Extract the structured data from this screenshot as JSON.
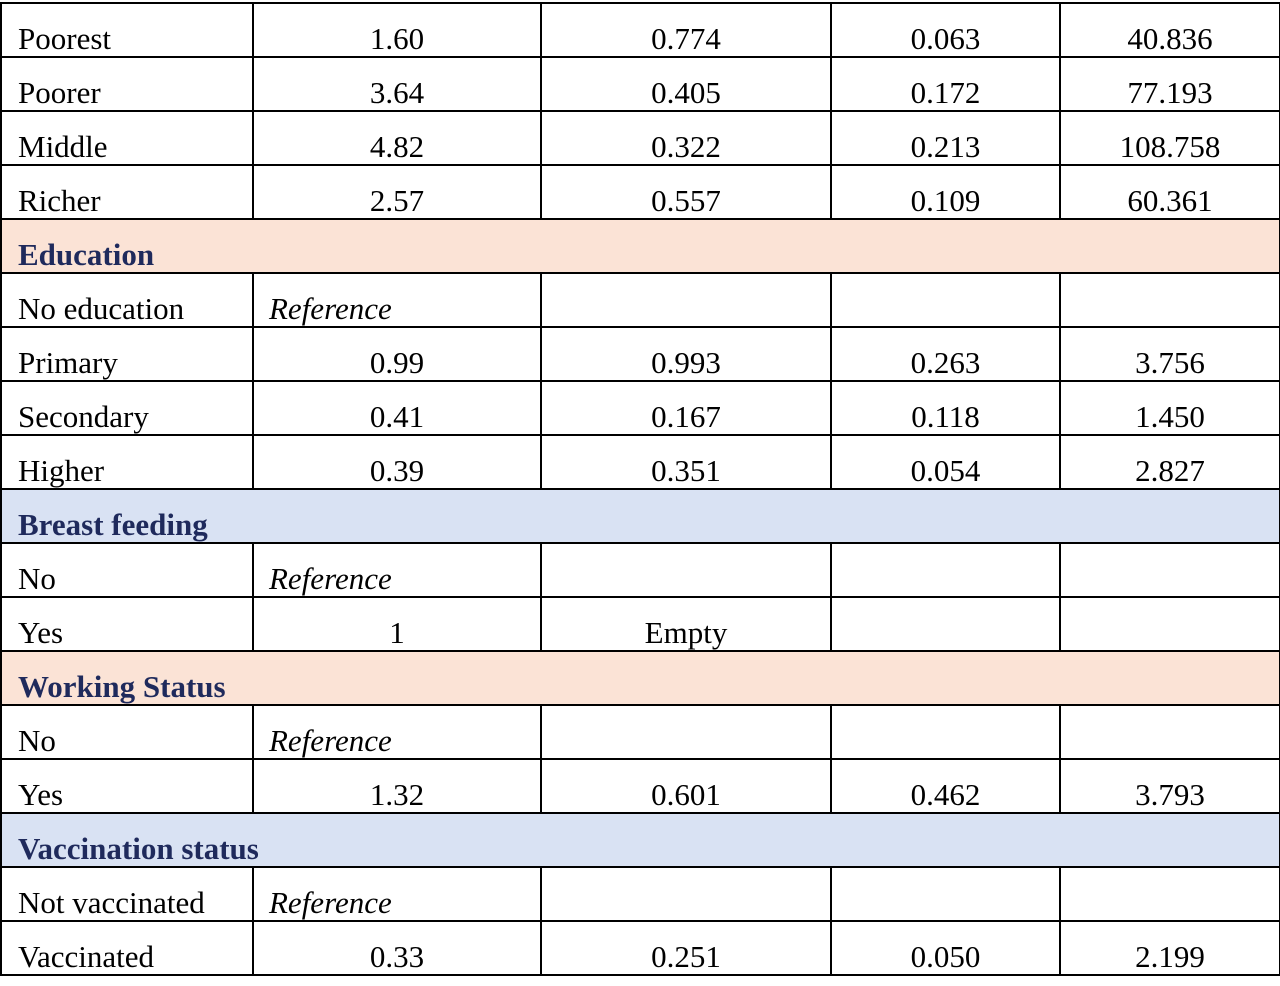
{
  "colors": {
    "section_peach": "#fbe3d6",
    "section_blue": "#d9e2f3",
    "section_text": "#1f2a5c",
    "border": "#000000"
  },
  "rows": [
    {
      "type": "data",
      "label": "Poorest",
      "v1": "1.60",
      "v2": "0.774",
      "v3": "0.063",
      "v4": "40.836"
    },
    {
      "type": "data",
      "label": "Poorer",
      "v1": "3.64",
      "v2": "0.405",
      "v3": "0.172",
      "v4": "77.193"
    },
    {
      "type": "data",
      "label": "Middle",
      "v1": "4.82",
      "v2": "0.322",
      "v3": "0.213",
      "v4": "108.758"
    },
    {
      "type": "data",
      "label": "Richer",
      "v1": "2.57",
      "v2": "0.557",
      "v3": "0.109",
      "v4": "60.361"
    },
    {
      "type": "section",
      "label": "Education",
      "tint": "peach"
    },
    {
      "type": "ref",
      "label": "No education",
      "ref": "Reference"
    },
    {
      "type": "data",
      "label": "Primary",
      "v1": "0.99",
      "v2": "0.993",
      "v3": "0.263",
      "v4": "3.756"
    },
    {
      "type": "data",
      "label": "Secondary",
      "v1": "0.41",
      "v2": "0.167",
      "v3": "0.118",
      "v4": "1.450"
    },
    {
      "type": "data",
      "label": "Higher",
      "v1": "0.39",
      "v2": "0.351",
      "v3": "0.054",
      "v4": "2.827"
    },
    {
      "type": "section",
      "label": "Breast feeding",
      "tint": "blue"
    },
    {
      "type": "ref",
      "label": "No",
      "ref": "Reference"
    },
    {
      "type": "data",
      "label": "Yes",
      "v1": "1",
      "v2": "Empty",
      "v3": "",
      "v4": ""
    },
    {
      "type": "section",
      "label": "Working Status",
      "tint": "peach"
    },
    {
      "type": "ref",
      "label": "No",
      "ref": "Reference"
    },
    {
      "type": "data",
      "label": "Yes",
      "v1": "1.32",
      "v2": "0.601",
      "v3": "0.462",
      "v4": "3.793"
    },
    {
      "type": "section",
      "label": "Vaccination status",
      "tint": "blue"
    },
    {
      "type": "ref",
      "label": "Not vaccinated",
      "ref": "Reference"
    },
    {
      "type": "data",
      "label": "Vaccinated",
      "v1": "0.33",
      "v2": "0.251",
      "v3": "0.050",
      "v4": "2.199"
    }
  ]
}
